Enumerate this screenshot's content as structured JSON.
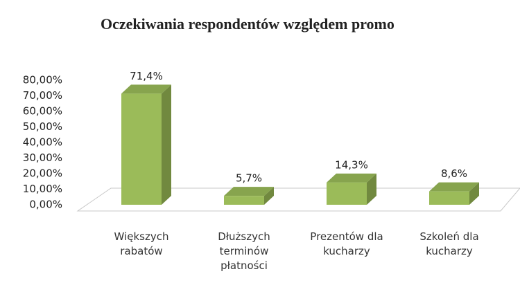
{
  "chart_data": {
    "type": "bar",
    "title": "Oczekiwania respondentów względem promo",
    "categories": [
      "Większych rabatów",
      "Dłuższych terminów płatności",
      "Prezentów dla kucharzy",
      "Szkoleń dla kucharzy"
    ],
    "values": [
      71.4,
      5.7,
      14.3,
      8.6
    ],
    "value_labels": [
      "71,4%",
      "5,7%",
      "14,3%",
      "8,6%"
    ],
    "color": "#9bbb59",
    "ylim": [
      0,
      80
    ],
    "yticks": [
      {
        "value": 0,
        "label": "0,00%"
      },
      {
        "value": 10,
        "label": "10,00%"
      },
      {
        "value": 20,
        "label": "20,00%"
      },
      {
        "value": 30,
        "label": "30,00%"
      },
      {
        "value": 40,
        "label": "40,00%"
      },
      {
        "value": 50,
        "label": "50,00%"
      },
      {
        "value": 60,
        "label": "60,00%"
      },
      {
        "value": 70,
        "label": "70,00%"
      },
      {
        "value": 80,
        "label": "80,00%"
      }
    ]
  }
}
